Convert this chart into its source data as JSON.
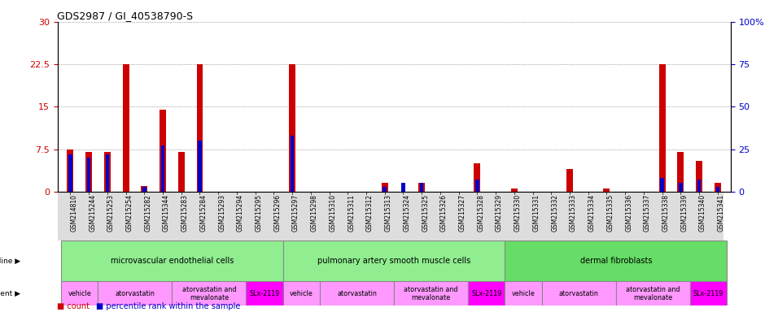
{
  "title": "GDS2987 / GI_40538790-S",
  "samples": [
    "GSM214810",
    "GSM215244",
    "GSM215253",
    "GSM215254",
    "GSM215282",
    "GSM215344",
    "GSM215283",
    "GSM215284",
    "GSM215293",
    "GSM215294",
    "GSM215295",
    "GSM215296",
    "GSM215297",
    "GSM215298",
    "GSM215310",
    "GSM215311",
    "GSM215312",
    "GSM215313",
    "GSM215324",
    "GSM215325",
    "GSM215326",
    "GSM215327",
    "GSM215328",
    "GSM215329",
    "GSM215330",
    "GSM215331",
    "GSM215332",
    "GSM215333",
    "GSM215334",
    "GSM215335",
    "GSM215336",
    "GSM215337",
    "GSM215338",
    "GSM215339",
    "GSM215340",
    "GSM215341"
  ],
  "count_values": [
    7.5,
    7.0,
    7.0,
    22.5,
    1.0,
    14.5,
    7.0,
    22.5,
    0.0,
    0.0,
    0.0,
    0.0,
    22.5,
    0.0,
    0.0,
    0.0,
    0.0,
    1.5,
    0.0,
    1.5,
    0.0,
    0.0,
    5.0,
    0.0,
    0.5,
    0.0,
    0.0,
    4.0,
    0.0,
    0.5,
    0.0,
    0.0,
    22.5,
    7.0,
    5.5,
    1.5
  ],
  "percentile_values": [
    22,
    20,
    22,
    0,
    3,
    27,
    0,
    30,
    0,
    0,
    0,
    0,
    33,
    0,
    0,
    0,
    0,
    3,
    5,
    5,
    0,
    0,
    7,
    0,
    0,
    0,
    0,
    0,
    0,
    0,
    0,
    0,
    8,
    5,
    7,
    3
  ],
  "ylim_left": [
    0,
    30
  ],
  "ylim_right": [
    0,
    100
  ],
  "yticks_left": [
    0,
    7.5,
    15,
    22.5,
    30
  ],
  "yticks_right": [
    0,
    25,
    50,
    75,
    100
  ],
  "ytick_labels_left": [
    "0",
    "7.5",
    "15",
    "22.5",
    "30"
  ],
  "ytick_labels_right": [
    "0",
    "25",
    "50",
    "75",
    "100%"
  ],
  "cell_line_groups": [
    {
      "label": "microvascular endothelial cells",
      "start": 0,
      "end": 12,
      "color": "#90EE90"
    },
    {
      "label": "pulmonary artery smooth muscle cells",
      "start": 12,
      "end": 24,
      "color": "#90EE90"
    },
    {
      "label": "dermal fibroblasts",
      "start": 24,
      "end": 36,
      "color": "#66DD66"
    }
  ],
  "agent_groups": [
    {
      "label": "vehicle",
      "start": 0,
      "end": 2,
      "color": "#FF99FF"
    },
    {
      "label": "atorvastatin",
      "start": 2,
      "end": 6,
      "color": "#FF99FF"
    },
    {
      "label": "atorvastatin and\nmevalonate",
      "start": 6,
      "end": 10,
      "color": "#FF99FF"
    },
    {
      "label": "SLx-2119",
      "start": 10,
      "end": 12,
      "color": "#FF00FF"
    },
    {
      "label": "vehicle",
      "start": 12,
      "end": 14,
      "color": "#FF99FF"
    },
    {
      "label": "atorvastatin",
      "start": 14,
      "end": 18,
      "color": "#FF99FF"
    },
    {
      "label": "atorvastatin and\nmevalonate",
      "start": 18,
      "end": 22,
      "color": "#FF99FF"
    },
    {
      "label": "SLx-2119",
      "start": 22,
      "end": 24,
      "color": "#FF00FF"
    },
    {
      "label": "vehicle",
      "start": 24,
      "end": 26,
      "color": "#FF99FF"
    },
    {
      "label": "atorvastatin",
      "start": 26,
      "end": 30,
      "color": "#FF99FF"
    },
    {
      "label": "atorvastatin and\nmevalonate",
      "start": 30,
      "end": 34,
      "color": "#FF99FF"
    },
    {
      "label": "SLx-2119",
      "start": 34,
      "end": 36,
      "color": "#FF00FF"
    }
  ],
  "red_bar_width": 0.35,
  "blue_bar_width": 0.2,
  "count_color": "#CC0000",
  "percentile_color": "#0000CC",
  "grid_color": "#666666",
  "bg_color": "#FFFFFF",
  "label_color_left": "#CC0000",
  "label_color_right": "#0000CC",
  "xticklabel_bg": "#DDDDDD"
}
